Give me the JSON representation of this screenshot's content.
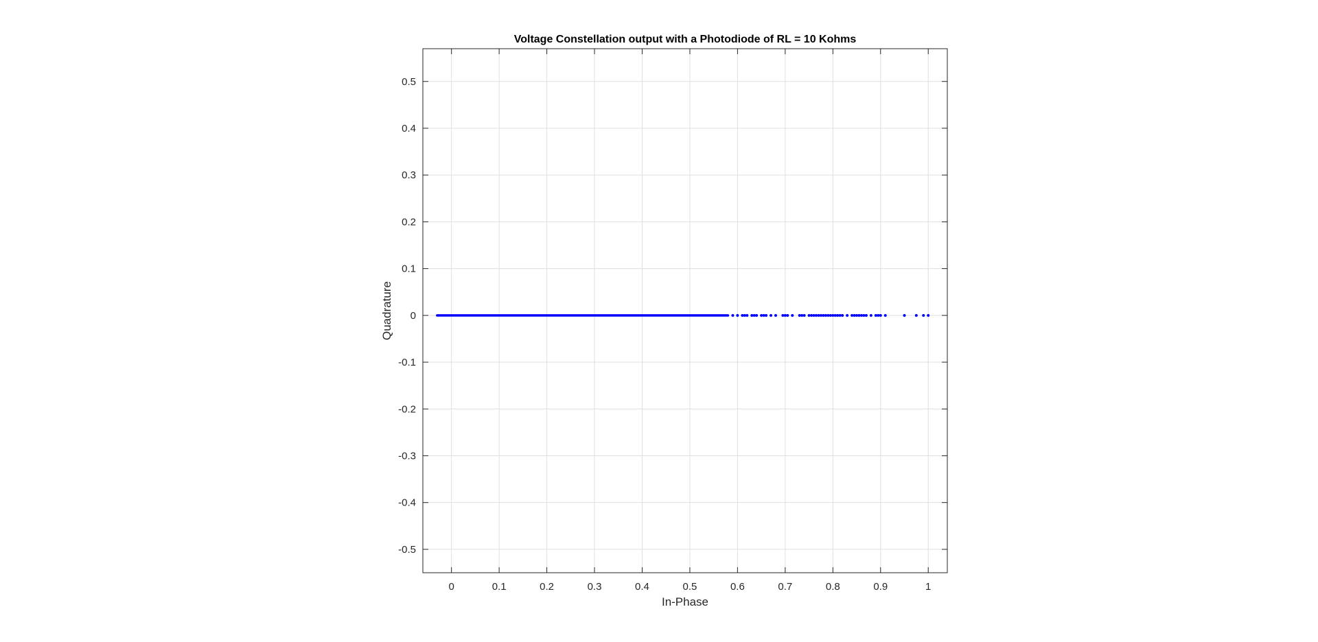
{
  "chart_data": {
    "type": "scatter",
    "title": "Voltage Constellation output with a Photodiode of RL = 10 Kohms",
    "xlabel": "In-Phase",
    "ylabel": "Quadrature",
    "xlim": [
      -0.06,
      1.04
    ],
    "ylim": [
      -0.55,
      0.57
    ],
    "xticks": [
      0,
      0.1,
      0.2,
      0.3,
      0.4,
      0.5,
      0.6,
      0.7,
      0.8,
      0.9,
      1
    ],
    "xtick_labels": [
      "0",
      "0.1",
      "0.2",
      "0.3",
      "0.4",
      "0.5",
      "0.6",
      "0.7",
      "0.8",
      "0.9",
      "1"
    ],
    "yticks": [
      0.5,
      0.4,
      0.3,
      0.2,
      0.1,
      0,
      -0.1,
      -0.2,
      -0.3,
      -0.4,
      -0.5
    ],
    "ytick_labels": [
      "0.5",
      "0.4",
      "0.3",
      "0.2",
      "0.1",
      "0",
      "-0.1",
      "-0.2",
      "-0.3",
      "-0.4",
      "-0.5"
    ],
    "grid": true,
    "series": [
      {
        "color": "#0000ff",
        "dense_segment": {
          "x_range": [
            -0.03,
            0.58
          ],
          "y": 0
        },
        "x": [
          0.59,
          0.6,
          0.61,
          0.615,
          0.62,
          0.63,
          0.635,
          0.64,
          0.65,
          0.655,
          0.66,
          0.67,
          0.68,
          0.695,
          0.7,
          0.705,
          0.715,
          0.73,
          0.735,
          0.74,
          0.75,
          0.755,
          0.76,
          0.765,
          0.77,
          0.775,
          0.78,
          0.785,
          0.79,
          0.795,
          0.8,
          0.805,
          0.81,
          0.815,
          0.82,
          0.83,
          0.84,
          0.845,
          0.85,
          0.855,
          0.86,
          0.865,
          0.87,
          0.88,
          0.89,
          0.895,
          0.9,
          0.91,
          0.95,
          0.975,
          0.99,
          1.0
        ],
        "y": [
          0,
          0,
          0,
          0,
          0,
          0,
          0,
          0,
          0,
          0,
          0,
          0,
          0,
          0,
          0,
          0,
          0,
          0,
          0,
          0,
          0,
          0,
          0,
          0,
          0,
          0,
          0,
          0,
          0,
          0,
          0,
          0,
          0,
          0,
          0,
          0,
          0,
          0,
          0,
          0,
          0,
          0,
          0,
          0,
          0,
          0,
          0,
          0,
          0,
          0,
          0,
          0
        ]
      }
    ]
  }
}
